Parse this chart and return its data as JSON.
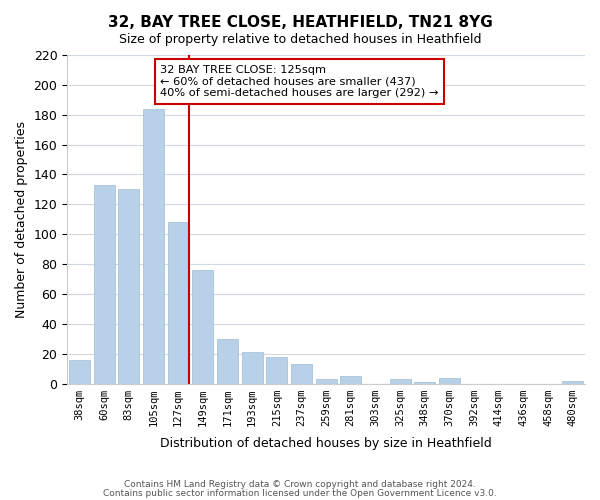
{
  "title": "32, BAY TREE CLOSE, HEATHFIELD, TN21 8YG",
  "subtitle": "Size of property relative to detached houses in Heathfield",
  "xlabel": "Distribution of detached houses by size in Heathfield",
  "ylabel": "Number of detached properties",
  "bar_labels": [
    "38sqm",
    "60sqm",
    "83sqm",
    "105sqm",
    "127sqm",
    "149sqm",
    "171sqm",
    "193sqm",
    "215sqm",
    "237sqm",
    "259sqm",
    "281sqm",
    "303sqm",
    "325sqm",
    "348sqm",
    "370sqm",
    "392sqm",
    "414sqm",
    "436sqm",
    "458sqm",
    "480sqm"
  ],
  "bar_values": [
    16,
    133,
    130,
    184,
    108,
    76,
    30,
    21,
    18,
    13,
    3,
    5,
    0,
    3,
    1,
    4,
    0,
    0,
    0,
    0,
    2
  ],
  "bar_color": "#b8d0e8",
  "bar_edge_color": "#a0bcd4",
  "vline_x": 4.425,
  "vline_color": "#cc0000",
  "ylim": [
    0,
    220
  ],
  "yticks": [
    0,
    20,
    40,
    60,
    80,
    100,
    120,
    140,
    160,
    180,
    200,
    220
  ],
  "annotation_title": "32 BAY TREE CLOSE: 125sqm",
  "annotation_line1": "← 60% of detached houses are smaller (437)",
  "annotation_line2": "40% of semi-detached houses are larger (292) →",
  "footer1": "Contains HM Land Registry data © Crown copyright and database right 2024.",
  "footer2": "Contains public sector information licensed under the Open Government Licence v3.0.",
  "background_color": "#ffffff",
  "grid_color": "#d0d8e4"
}
